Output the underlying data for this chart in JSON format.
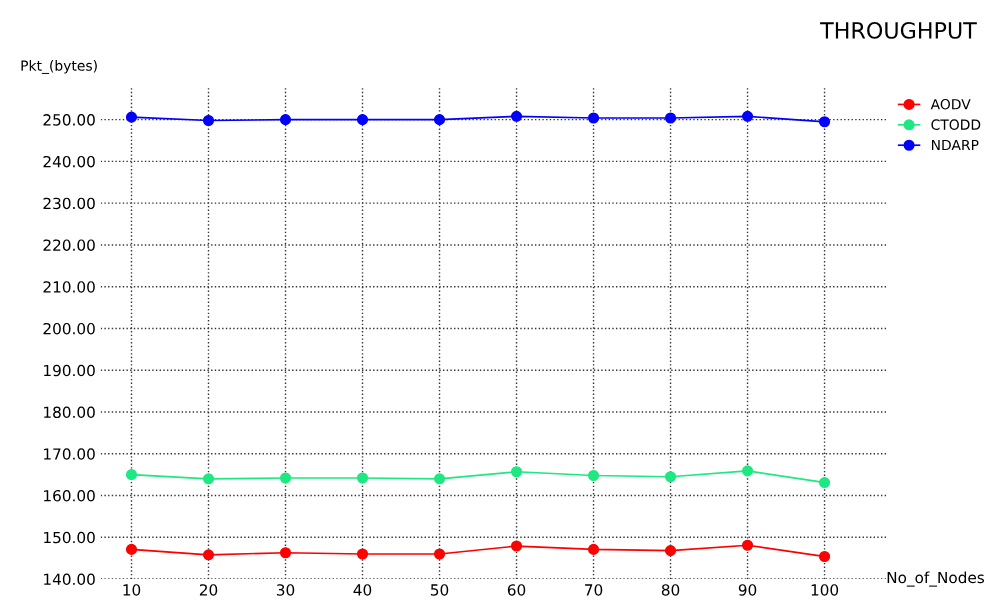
{
  "chart_data": {
    "type": "line",
    "title": "THROUGHPUT",
    "xlabel": "No_of_Nodes",
    "ylabel": "Pkt_(bytes)",
    "x": [
      10,
      20,
      30,
      40,
      50,
      60,
      70,
      80,
      90,
      100
    ],
    "series": [
      {
        "name": "AODV",
        "color": "#ff0000",
        "values": [
          147.1,
          145.8,
          146.3,
          146.0,
          146.0,
          147.9,
          147.1,
          146.8,
          148.1,
          145.4
        ]
      },
      {
        "name": "CTODD",
        "color": "#1de882",
        "values": [
          165.0,
          164.0,
          164.2,
          164.2,
          164.0,
          165.7,
          164.8,
          164.5,
          165.9,
          163.1
        ]
      },
      {
        "name": "NDARP",
        "color": "#0000ff",
        "values": [
          250.6,
          249.8,
          250.0,
          250.0,
          250.0,
          250.8,
          250.4,
          250.4,
          250.8,
          249.5
        ]
      }
    ],
    "xlim": [
      6,
      108
    ],
    "ylim": [
      140,
      258
    ],
    "xticks": [
      10,
      20,
      30,
      40,
      50,
      60,
      70,
      80,
      90,
      100
    ],
    "yticks": [
      {
        "value": 140,
        "label": "140.00"
      },
      {
        "value": 150,
        "label": "150.00"
      },
      {
        "value": 160,
        "label": "160.00"
      },
      {
        "value": 170,
        "label": "170.00"
      },
      {
        "value": 180,
        "label": "180.00"
      },
      {
        "value": 190,
        "label": "190.00"
      },
      {
        "value": 200,
        "label": "200.00"
      },
      {
        "value": 210,
        "label": "210.00"
      },
      {
        "value": 220,
        "label": "220.00"
      },
      {
        "value": 230,
        "label": "230.00"
      },
      {
        "value": 240,
        "label": "240.00"
      },
      {
        "value": 250,
        "label": "250.00"
      }
    ],
    "grid": true,
    "legend": "top right",
    "marker": "circle",
    "line_style": "solid"
  }
}
